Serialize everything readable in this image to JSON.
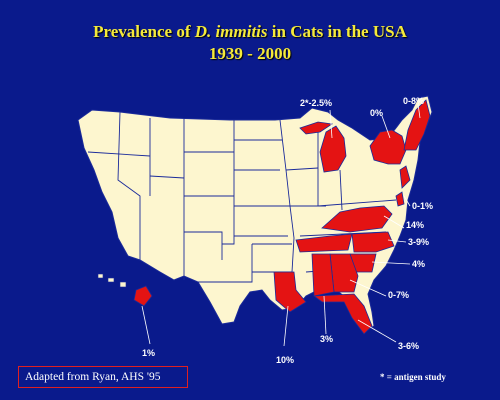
{
  "title": {
    "prefix": "Prevalence of ",
    "species": "D. immitis",
    "suffix": " in Cats in the USA",
    "years": "1939 - 2000"
  },
  "colors": {
    "background": "#0a1a8c",
    "land": "#fdf6cf",
    "positive": "#e41313",
    "borders": "#1a2a9a",
    "title": "#f5ea3a"
  },
  "prevalence_labels": [
    {
      "id": "michigan",
      "text": "2*-2.5%"
    },
    {
      "id": "new-york",
      "text": "0%"
    },
    {
      "id": "new-england",
      "text": "0-8%"
    },
    {
      "id": "mid-atlantic",
      "text": "0-1%"
    },
    {
      "id": "virginia",
      "text": "14%"
    },
    {
      "id": "north-carolina",
      "text": "3-9%"
    },
    {
      "id": "south-carolina",
      "text": "4%"
    },
    {
      "id": "georgia",
      "text": "0-7%"
    },
    {
      "id": "florida",
      "text": "3-6%"
    },
    {
      "id": "alabama",
      "text": "3%"
    },
    {
      "id": "louisiana",
      "text": "10%"
    },
    {
      "id": "hawaii",
      "text": "1%"
    }
  ],
  "source": "Adapted from Ryan, AHS '95",
  "footnote": "* = antigen study"
}
